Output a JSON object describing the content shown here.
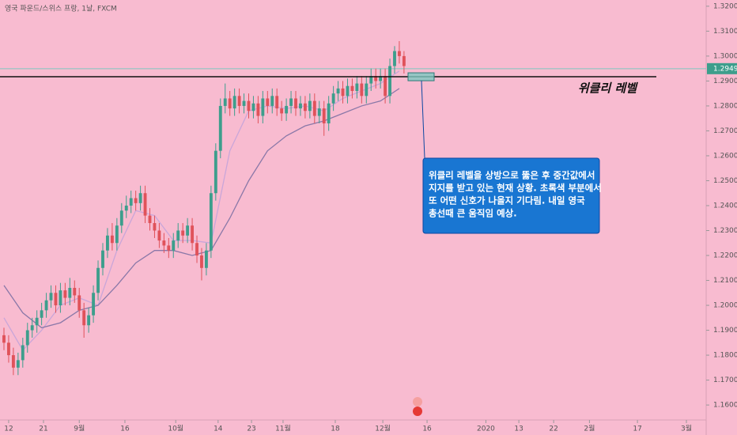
{
  "chart_data": {
    "type": "candlestick",
    "title": "영국 파운드/스위스 프랑, 1날, FXCM",
    "up_color": "#3d9e8c",
    "down_color": "#e0525a",
    "background": "#f8bbd0",
    "open": [
      1.188,
      1.185,
      1.18,
      1.175,
      1.178,
      1.184,
      1.19,
      1.192,
      1.195,
      1.198,
      1.202,
      1.205,
      1.2,
      1.206,
      1.203,
      1.207,
      1.204,
      1.198,
      1.192,
      1.196,
      1.205,
      1.215,
      1.222,
      1.228,
      1.225,
      1.232,
      1.238,
      1.24,
      1.243,
      1.241,
      1.245,
      1.236,
      1.233,
      1.23,
      1.226,
      1.224,
      1.222,
      1.226,
      1.23,
      1.228,
      1.232,
      1.225,
      1.22,
      1.215,
      1.222,
      1.245,
      1.262,
      1.28,
      1.283,
      1.279,
      1.284,
      1.28,
      1.282,
      1.278,
      1.281,
      1.276,
      1.283,
      1.28,
      1.284,
      1.279,
      1.277,
      1.28,
      1.283,
      1.279,
      1.281,
      1.278,
      1.282,
      1.276,
      1.279,
      1.273,
      1.281,
      1.285,
      1.287,
      1.284,
      1.288,
      1.286,
      1.289,
      1.284,
      1.289,
      1.292,
      1.29,
      1.292,
      1.284,
      1.296,
      1.302,
      1.3
    ],
    "high": [
      1.191,
      1.188,
      1.183,
      1.181,
      1.187,
      1.193,
      1.195,
      1.198,
      1.201,
      1.205,
      1.208,
      1.208,
      1.209,
      1.209,
      1.211,
      1.21,
      1.207,
      1.201,
      1.199,
      1.208,
      1.218,
      1.225,
      1.231,
      1.233,
      1.235,
      1.241,
      1.244,
      1.246,
      1.246,
      1.248,
      1.248,
      1.239,
      1.236,
      1.233,
      1.229,
      1.227,
      1.229,
      1.233,
      1.233,
      1.235,
      1.235,
      1.228,
      1.223,
      1.225,
      1.248,
      1.265,
      1.283,
      1.289,
      1.286,
      1.287,
      1.287,
      1.285,
      1.285,
      1.284,
      1.284,
      1.286,
      1.286,
      1.287,
      1.287,
      1.282,
      1.283,
      1.286,
      1.286,
      1.284,
      1.284,
      1.285,
      1.285,
      1.282,
      1.282,
      1.284,
      1.288,
      1.29,
      1.29,
      1.291,
      1.291,
      1.292,
      1.292,
      1.292,
      1.295,
      1.295,
      1.295,
      1.295,
      1.299,
      1.304,
      1.306,
      1.302
    ],
    "low": [
      1.182,
      1.177,
      1.172,
      1.172,
      1.175,
      1.181,
      1.187,
      1.189,
      1.192,
      1.195,
      1.199,
      1.197,
      1.197,
      1.2,
      1.2,
      1.201,
      1.195,
      1.187,
      1.189,
      1.193,
      1.202,
      1.212,
      1.219,
      1.222,
      1.222,
      1.229,
      1.235,
      1.237,
      1.238,
      1.238,
      1.233,
      1.23,
      1.227,
      1.223,
      1.221,
      1.219,
      1.219,
      1.223,
      1.225,
      1.225,
      1.222,
      1.217,
      1.21,
      1.212,
      1.219,
      1.242,
      1.259,
      1.277,
      1.276,
      1.276,
      1.277,
      1.277,
      1.275,
      1.275,
      1.273,
      1.273,
      1.277,
      1.277,
      1.276,
      1.274,
      1.274,
      1.277,
      1.276,
      1.276,
      1.275,
      1.275,
      1.273,
      1.273,
      1.268,
      1.27,
      1.278,
      1.282,
      1.281,
      1.281,
      1.283,
      1.283,
      1.281,
      1.281,
      1.286,
      1.287,
      1.287,
      1.281,
      1.281,
      1.293,
      1.297,
      1.293
    ],
    "close": [
      1.185,
      1.18,
      1.175,
      1.178,
      1.184,
      1.19,
      1.192,
      1.195,
      1.198,
      1.202,
      1.205,
      1.2,
      1.206,
      1.203,
      1.207,
      1.204,
      1.198,
      1.192,
      1.196,
      1.205,
      1.215,
      1.222,
      1.228,
      1.225,
      1.232,
      1.238,
      1.24,
      1.243,
      1.241,
      1.245,
      1.236,
      1.233,
      1.23,
      1.226,
      1.224,
      1.222,
      1.226,
      1.23,
      1.228,
      1.232,
      1.225,
      1.22,
      1.215,
      1.222,
      1.245,
      1.262,
      1.28,
      1.283,
      1.279,
      1.284,
      1.28,
      1.282,
      1.278,
      1.281,
      1.276,
      1.283,
      1.28,
      1.284,
      1.279,
      1.277,
      1.28,
      1.283,
      1.279,
      1.281,
      1.278,
      1.282,
      1.276,
      1.279,
      1.273,
      1.281,
      1.285,
      1.287,
      1.284,
      1.288,
      1.286,
      1.289,
      1.284,
      1.289,
      1.292,
      1.29,
      1.292,
      1.284,
      1.296,
      1.302,
      1.3,
      1.296
    ],
    "lines": [
      {
        "color": "#c9a6d9",
        "x": [
          0,
          4,
          8,
          12,
          16,
          20,
          24,
          28,
          32,
          36,
          40,
          44,
          48,
          52,
          56,
          60,
          64,
          68,
          72,
          76,
          80,
          84
        ],
        "values": [
          1.195,
          1.182,
          1.19,
          1.2,
          1.203,
          1.2,
          1.222,
          1.238,
          1.236,
          1.226,
          1.226,
          1.225,
          1.262,
          1.278,
          1.28,
          1.279,
          1.28,
          1.278,
          1.283,
          1.286,
          1.289,
          1.294
        ]
      },
      {
        "color": "#8a78a8",
        "x": [
          0,
          4,
          8,
          12,
          16,
          20,
          24,
          28,
          32,
          36,
          40,
          44,
          48,
          52,
          56,
          60,
          64,
          68,
          72,
          76,
          80,
          84
        ],
        "values": [
          1.208,
          1.197,
          1.191,
          1.193,
          1.198,
          1.2,
          1.208,
          1.217,
          1.222,
          1.222,
          1.22,
          1.222,
          1.235,
          1.25,
          1.262,
          1.268,
          1.272,
          1.274,
          1.277,
          1.28,
          1.282,
          1.287
        ]
      }
    ],
    "xlim": [
      -0.84,
      149.2
    ],
    "xticks": [
      {
        "value": 1,
        "label": "12"
      },
      {
        "value": 8.4,
        "label": "21"
      },
      {
        "value": 16,
        "label": "9월"
      },
      {
        "value": 25.7,
        "label": "16"
      },
      {
        "value": 36.5,
        "label": "10월"
      },
      {
        "value": 45.5,
        "label": "14"
      },
      {
        "value": 52.6,
        "label": "23"
      },
      {
        "value": 59.3,
        "label": "11월"
      },
      {
        "value": 70.4,
        "label": "18"
      },
      {
        "value": 80.5,
        "label": "12월"
      },
      {
        "value": 89.9,
        "label": "16"
      },
      {
        "value": 102.4,
        "label": "2020"
      },
      {
        "value": 109.4,
        "label": "13"
      },
      {
        "value": 116.8,
        "label": "22"
      },
      {
        "value": 124.4,
        "label": "2월"
      },
      {
        "value": 134.6,
        "label": "17"
      },
      {
        "value": 145,
        "label": "3월"
      }
    ],
    "ylim": [
      1.154,
      1.3225
    ],
    "yticks": [
      {
        "value": 1.32,
        "label": "1.32000"
      },
      {
        "value": 1.31,
        "label": "1.31000"
      },
      {
        "value": 1.3,
        "label": "1.30000"
      },
      {
        "value": 1.29,
        "label": "1.29000"
      },
      {
        "value": 1.28,
        "label": "1.28000"
      },
      {
        "value": 1.27,
        "label": "1.27000"
      },
      {
        "value": 1.26,
        "label": "1.26000"
      },
      {
        "value": 1.25,
        "label": "1.25000"
      },
      {
        "value": 1.24,
        "label": "1.24000"
      },
      {
        "value": 1.23,
        "label": "1.23000"
      },
      {
        "value": 1.22,
        "label": "1.22000"
      },
      {
        "value": 1.21,
        "label": "1.21000"
      },
      {
        "value": 1.2,
        "label": "1.20000"
      },
      {
        "value": 1.19,
        "label": "1.19000"
      },
      {
        "value": 1.18,
        "label": "1.18000"
      },
      {
        "value": 1.17,
        "label": "1.17000"
      },
      {
        "value": 1.16,
        "label": "1.16000"
      }
    ],
    "current_price": 1.29495,
    "level": {
      "value": 1.2917,
      "label": "위클리 레벨"
    },
    "annotation": [
      "위클리 레벨을 상방으로 뚫은 후 중간값에서",
      "지지를 받고 있는 현재 상황. 초록색 부분에서",
      "또 어떤 신호가 나올지 기다림. 내일 영국",
      "총선때 큰 움직임 예상."
    ]
  }
}
